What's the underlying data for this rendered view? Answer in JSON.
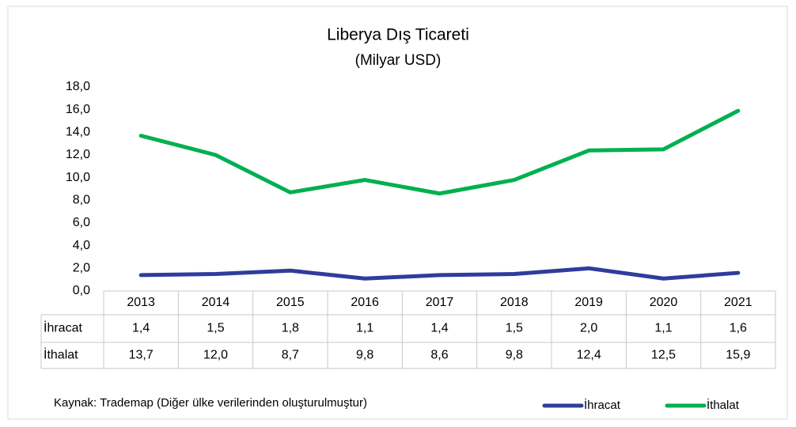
{
  "chart_data": {
    "type": "line",
    "title": "Liberya Dış Ticareti",
    "subtitle": "(Milyar USD)",
    "categories": [
      "2013",
      "2014",
      "2015",
      "2016",
      "2017",
      "2018",
      "2019",
      "2020",
      "2021"
    ],
    "series": [
      {
        "name": "İhracat",
        "color": "#2e3d9c",
        "values": [
          1.4,
          1.5,
          1.8,
          1.1,
          1.4,
          1.5,
          2.0,
          1.1,
          1.6
        ],
        "value_labels": [
          "1,4",
          "1,5",
          "1,8",
          "1,1",
          "1,4",
          "1,5",
          "2,0",
          "1,1",
          "1,6"
        ]
      },
      {
        "name": "İthalat",
        "color": "#00b050",
        "values": [
          13.7,
          12.0,
          8.7,
          9.8,
          8.6,
          9.8,
          12.4,
          12.5,
          15.9
        ],
        "value_labels": [
          "13,7",
          "12,0",
          "8,7",
          "9,8",
          "8,6",
          "9,8",
          "12,4",
          "12,5",
          "15,9"
        ]
      }
    ],
    "ylim": [
      0,
      18
    ],
    "yticks": [
      {
        "value": 0,
        "label": "0,0"
      },
      {
        "value": 2,
        "label": "2,0"
      },
      {
        "value": 4,
        "label": "4,0"
      },
      {
        "value": 6,
        "label": "6,0"
      },
      {
        "value": 8,
        "label": "8,0"
      },
      {
        "value": 10,
        "label": "10,0"
      },
      {
        "value": 12,
        "label": "12,0"
      },
      {
        "value": 14,
        "label": "14,0"
      },
      {
        "value": 16,
        "label": "16,0"
      },
      {
        "value": 18,
        "label": "18,0"
      }
    ],
    "grid": false,
    "source": "Kaynak: Trademap (Diğer ülke verilerinden oluşturulmuştur)"
  }
}
